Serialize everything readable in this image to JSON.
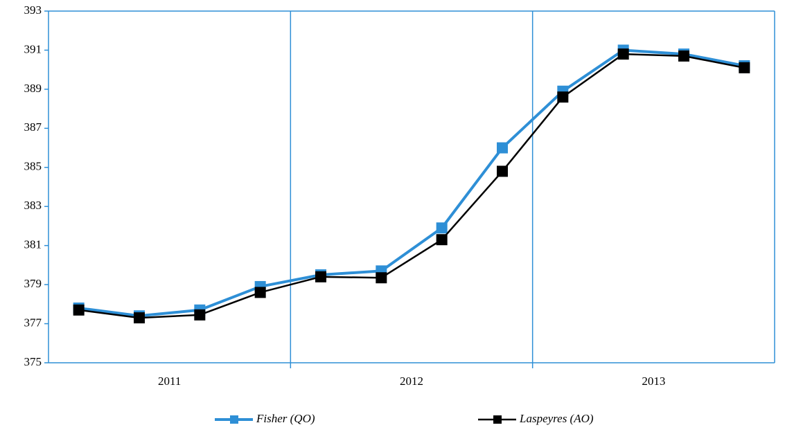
{
  "chart_data": {
    "type": "line",
    "categories": [
      null,
      null,
      null,
      null,
      null,
      null,
      null,
      null,
      null,
      null,
      null,
      null
    ],
    "groups": [
      "2011",
      "2012",
      "2013"
    ],
    "series": [
      {
        "name": "Fisher (QO)",
        "color": "#2e8fd6",
        "values": [
          377.8,
          377.4,
          377.7,
          378.9,
          379.5,
          379.7,
          381.9,
          386.0,
          388.9,
          391.0,
          390.8,
          390.2
        ]
      },
      {
        "name": "Laspeyres (AO)",
        "color": "#000000",
        "values": [
          377.7,
          377.3,
          377.45,
          378.6,
          379.4,
          379.35,
          381.3,
          384.8,
          388.6,
          390.8,
          390.7,
          390.1
        ]
      }
    ],
    "ylim": [
      375,
      393
    ],
    "yticks": [
      375,
      377,
      379,
      381,
      383,
      385,
      387,
      389,
      391,
      393
    ],
    "axis_color": "#2e8fd6",
    "grid": false,
    "legend": "bottom"
  }
}
